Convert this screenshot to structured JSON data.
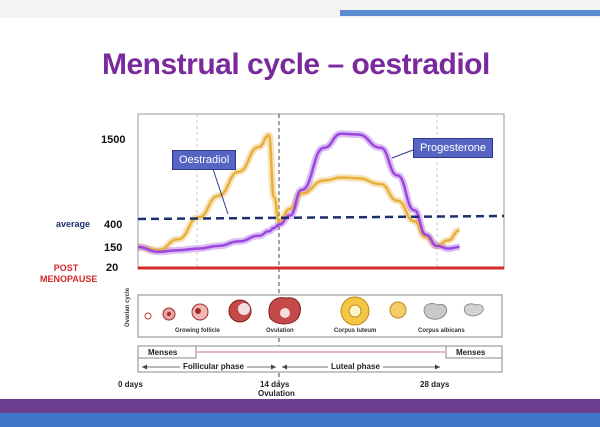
{
  "title": "Menstrual cycle – oestradiol",
  "chart_data": {
    "type": "line",
    "x": [
      0,
      2,
      4,
      6,
      8,
      10,
      12,
      13,
      13.5,
      14,
      15,
      16,
      18,
      19.5,
      21,
      23,
      24.5,
      26,
      27,
      28,
      29,
      30
    ],
    "series": [
      {
        "name": "Oestradiol",
        "color": "#e8b03a",
        "values": [
          150,
          130,
          220,
          420,
          720,
          1050,
          1390,
          1550,
          700,
          380,
          540,
          750,
          930,
          970,
          960,
          880,
          650,
          380,
          240,
          160,
          210,
          300
        ]
      },
      {
        "name": "Progesterone",
        "color": "#9b46e0",
        "values": [
          150,
          120,
          130,
          140,
          160,
          200,
          250,
          290,
          320,
          350,
          450,
          800,
          1380,
          1570,
          1560,
          1380,
          1000,
          520,
          260,
          160,
          140,
          150
        ]
      }
    ],
    "reference_lines": [
      {
        "label": "average",
        "value": 400,
        "style": "dashed",
        "color": "#1d2f6e"
      },
      {
        "label": "POST MENOPAUSE",
        "value": 20,
        "style": "solid",
        "color": "#d42a2a"
      }
    ],
    "y_tick_labels": [
      "1500",
      "400",
      "150",
      "20"
    ],
    "y_side_labels": {
      "average": "average",
      "post_menopause": "POST MENOPAUSE"
    },
    "x_tick_labels": [
      "0 days",
      "14 days",
      "28 days"
    ],
    "x_annotation": "Ovulation"
  },
  "ovarian": {
    "axis_label": "Ovarian cycle",
    "stages": [
      "Growing follicle",
      "Ovulation",
      "Corpus luteum",
      "Corpus albicans"
    ]
  },
  "phases": {
    "menses": "Menses",
    "follicular": "Follicular phase",
    "luteal": "Luteal phase"
  },
  "colors": {
    "title": "#7b2a9e",
    "oestradiol": "#e8b03a",
    "progesterone": "#9b46e0",
    "average_line": "#1d2f6e",
    "post_menopause": "#d42a2a",
    "band_purple": "#6a3f8f",
    "band_blue": "#3f78c9"
  }
}
